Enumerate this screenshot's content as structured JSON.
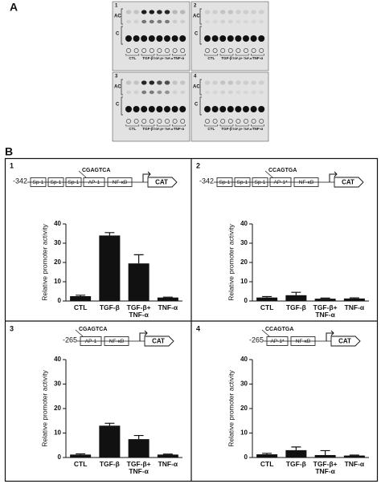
{
  "panel_a": {
    "label": "A",
    "ac_label": "AC",
    "c_label": "C",
    "lanes": [
      "CTL",
      "TGF-β",
      "TGF-β+ TNF-α",
      "TNF-α"
    ],
    "plates": [
      "1",
      "2",
      "3",
      "4"
    ]
  },
  "panel_b_label": "B",
  "chart_data": [
    {
      "type": "bar",
      "number": "1",
      "promoter": {
        "start": "-342",
        "elements": [
          "Sp-1",
          "Sp-1",
          "Sp-1",
          "AP-1",
          "NF-κB"
        ],
        "sequence": "CGAGTCA",
        "reporter": "CAT"
      },
      "y_label": "Relative promoter activity",
      "categories": [
        "CTL",
        "TGF-β",
        "TGF-β+ TNF-α",
        "TNF-α"
      ],
      "values": [
        2.5,
        34,
        19.5,
        1.8
      ],
      "errors": [
        0.5,
        1.5,
        4.5,
        0.2
      ],
      "ylim": [
        0,
        40
      ],
      "yticks": [
        0,
        10,
        20,
        30,
        40
      ],
      "color": "#111111"
    },
    {
      "type": "bar",
      "number": "2",
      "promoter": {
        "start": "-342",
        "elements": [
          "Sp-1",
          "Sp-1",
          "Sp-1",
          "AP-1*",
          "NF-κB"
        ],
        "sequence": "CCAGTGA",
        "reporter": "CAT"
      },
      "y_label": "Relative promoter activity",
      "categories": [
        "CTL",
        "TGF-β",
        "TGF-β+ TNF-α",
        "TNF-α"
      ],
      "values": [
        1.8,
        3,
        1.2,
        1.3
      ],
      "errors": [
        0.5,
        1.5,
        0.3,
        0.3
      ],
      "ylim": [
        0,
        40
      ],
      "yticks": [
        0,
        10,
        20,
        30,
        40
      ],
      "color": "#111111"
    },
    {
      "type": "bar",
      "number": "3",
      "promoter": {
        "start": "-265",
        "elements": [
          "AP-1",
          "NF-κB"
        ],
        "sequence": "CGAGTCA",
        "reporter": "CAT"
      },
      "y_label": "Relative promoter activity",
      "categories": [
        "CTL",
        "TGF-β",
        "TGF-β+ TNF-α",
        "TNF-α"
      ],
      "values": [
        1.2,
        13,
        7.5,
        1.2
      ],
      "errors": [
        0.3,
        1,
        1.5,
        0.2
      ],
      "ylim": [
        0,
        40
      ],
      "yticks": [
        0,
        10,
        20,
        30,
        40
      ],
      "color": "#111111"
    },
    {
      "type": "bar",
      "number": "4",
      "promoter": {
        "start": "-265",
        "elements": [
          "AP-1*",
          "NF-κB"
        ],
        "sequence": "CCAGTGA",
        "reporter": "CAT"
      },
      "y_label": "Relative promoter activity",
      "categories": [
        "CTL",
        "TGF-β",
        "TGF-β+ TNF-α",
        "TNF-α"
      ],
      "values": [
        1.3,
        3,
        1,
        0.8
      ],
      "errors": [
        0.4,
        1.3,
        1.8,
        0.2
      ],
      "ylim": [
        0,
        40
      ],
      "yticks": [
        0,
        10,
        20,
        30,
        40
      ],
      "color": "#111111"
    }
  ]
}
